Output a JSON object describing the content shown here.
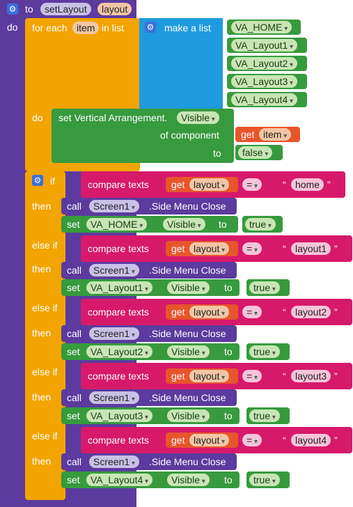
{
  "procedure": {
    "to": "to",
    "name": "setLayout",
    "param": "layout",
    "do": "do"
  },
  "foreach": {
    "for_each": "for each",
    "item": "item",
    "in_list": "in list",
    "do": "do",
    "make_list": "make a list",
    "items": [
      "VA_HOME",
      "VA_Layout1",
      "VA_Layout2",
      "VA_Layout3",
      "VA_Layout4"
    ]
  },
  "set_generic": {
    "label": "set Vertical Arrangement.",
    "prop": "Visible",
    "of_component": "of component",
    "get": "get",
    "var": "item",
    "to": "to",
    "value": "false"
  },
  "ifblock": {
    "if": "if",
    "then": "then",
    "else_if": "else if"
  },
  "branches": [
    {
      "compare": "compare texts",
      "get": "get",
      "var": "layout",
      "op": "=",
      "text": "home",
      "call": "call",
      "screen": "Screen1",
      "method": ".Side Menu Close",
      "set": "set",
      "component": "VA_HOME",
      "prop": "Visible",
      "to": "to",
      "value": "true"
    },
    {
      "compare": "compare texts",
      "get": "get",
      "var": "layout",
      "op": "=",
      "text": "layout1",
      "call": "call",
      "screen": "Screen1",
      "method": ".Side Menu Close",
      "set": "set",
      "component": "VA_Layout1",
      "prop": "Visible",
      "to": "to",
      "value": "true"
    },
    {
      "compare": "compare texts",
      "get": "get",
      "var": "layout",
      "op": "=",
      "text": "layout2",
      "call": "call",
      "screen": "Screen1",
      "method": ".Side Menu Close",
      "set": "set",
      "component": "VA_Layout2",
      "prop": "Visible",
      "to": "to",
      "value": "true"
    },
    {
      "compare": "compare texts",
      "get": "get",
      "var": "layout",
      "op": "=",
      "text": "layout3",
      "call": "call",
      "screen": "Screen1",
      "method": ".Side Menu Close",
      "set": "set",
      "component": "VA_Layout3",
      "prop": "Visible",
      "to": "to",
      "value": "true"
    },
    {
      "compare": "compare texts",
      "get": "get",
      "var": "layout",
      "op": "=",
      "text": "layout4",
      "call": "call",
      "screen": "Screen1",
      "method": ".Side Menu Close",
      "set": "set",
      "component": "VA_Layout4",
      "prop": "Visible",
      "to": "to",
      "value": "true"
    }
  ],
  "colors": {
    "procedure": "#5b3b9e",
    "control": "#f2a400",
    "lists": "#1e9be0",
    "components": "#379a3e",
    "text": "#d7196a",
    "variables": "#e8552b"
  }
}
